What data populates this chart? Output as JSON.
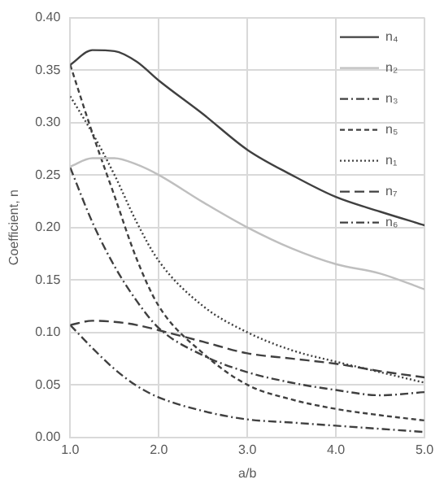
{
  "chart_data": {
    "type": "line",
    "xlabel": "a/b",
    "ylabel": "Coefficient, n",
    "x": [
      1,
      1.25,
      1.5,
      1.75,
      2,
      2.5,
      3,
      3.5,
      4,
      4.5,
      5
    ],
    "series": [
      {
        "name": "n₄",
        "color": "#404040",
        "line_style": "solid",
        "values": [
          0.355,
          0.369,
          0.368,
          0.358,
          0.34,
          0.308,
          0.274,
          0.25,
          0.229,
          0.215,
          0.202
        ]
      },
      {
        "name": "n₂",
        "color": "#bfbfbf",
        "line_style": "solid",
        "values": [
          0.258,
          0.266,
          0.266,
          0.26,
          0.25,
          0.224,
          0.2,
          0.18,
          0.165,
          0.156,
          0.141
        ]
      },
      {
        "name": "n₃",
        "color": "#404040",
        "line_style": "dashdot",
        "values": [
          0.257,
          0.205,
          0.163,
          0.13,
          0.104,
          0.078,
          0.062,
          0.052,
          0.045,
          0.04,
          0.043
        ]
      },
      {
        "name": "n₅",
        "color": "#404040",
        "line_style": "dashed",
        "values": [
          0.355,
          0.29,
          0.23,
          0.17,
          0.125,
          0.08,
          0.05,
          0.036,
          0.027,
          0.021,
          0.016
        ]
      },
      {
        "name": "n₁",
        "color": "#404040",
        "line_style": "dotted",
        "values": [
          0.325,
          0.29,
          0.25,
          0.205,
          0.168,
          0.125,
          0.1,
          0.083,
          0.072,
          0.062,
          0.052
        ]
      },
      {
        "name": "n₇",
        "color": "#404040",
        "line_style": "longdash",
        "values": [
          0.107,
          0.111,
          0.11,
          0.107,
          0.102,
          0.091,
          0.08,
          0.075,
          0.07,
          0.063,
          0.057
        ]
      },
      {
        "name": "n₆",
        "color": "#404040",
        "line_style": "dashdot",
        "values": [
          0.107,
          0.085,
          0.065,
          0.049,
          0.038,
          0.025,
          0.017,
          0.014,
          0.011,
          0.008,
          0.005
        ]
      }
    ],
    "xlim": [
      1,
      5
    ],
    "xticks": [
      {
        "value": 1,
        "label": "1.0"
      },
      {
        "value": 2,
        "label": "2.0"
      },
      {
        "value": 3,
        "label": "3.0"
      },
      {
        "value": 4,
        "label": "4.0"
      },
      {
        "value": 5,
        "label": "5.0"
      }
    ],
    "ylim": [
      0,
      0.4
    ],
    "yticks": [
      {
        "value": 0,
        "label": "0.00"
      },
      {
        "value": 0.05,
        "label": "0.05"
      },
      {
        "value": 0.1,
        "label": "0.10"
      },
      {
        "value": 0.15,
        "label": "0.15"
      },
      {
        "value": 0.2,
        "label": "0.20"
      },
      {
        "value": 0.25,
        "label": "0.25"
      },
      {
        "value": 0.3,
        "label": "0.30"
      },
      {
        "value": 0.35,
        "label": "0.35"
      },
      {
        "value": 0.4,
        "label": "0.40"
      }
    ],
    "grid": true,
    "legend": "top right",
    "marker": "none"
  }
}
